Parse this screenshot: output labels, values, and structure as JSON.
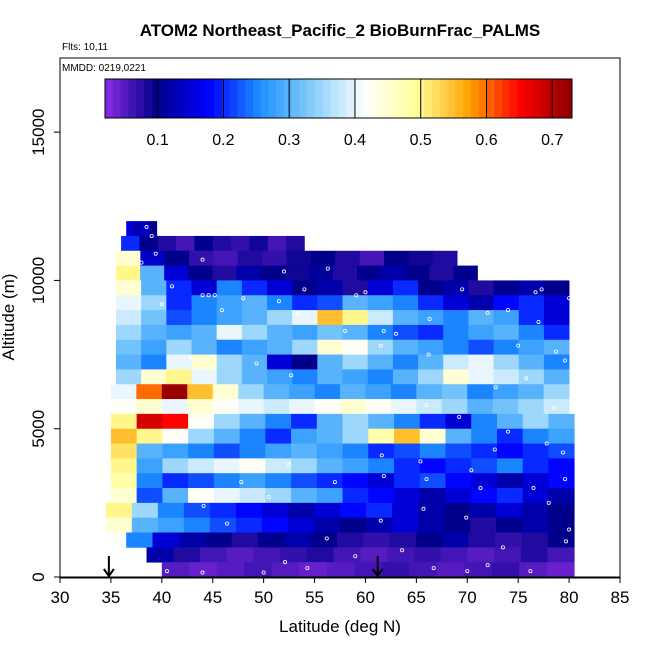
{
  "chart_data": {
    "type": "heatmap",
    "title": "ATOM2 Northeast_Pacific_2 BioBurnFrac_PALMS",
    "annotations": {
      "flights": "Flts: 10,11",
      "dates": "MMDD: 0219,0221"
    },
    "xlabel": "Latitude (deg N)",
    "ylabel": "Altitude (m)",
    "xlim": [
      30,
      85
    ],
    "ylim": [
      0,
      17500
    ],
    "x_ticks": [
      30,
      35,
      40,
      45,
      50,
      55,
      60,
      65,
      70,
      75,
      80,
      85
    ],
    "y_ticks": [
      0,
      5000,
      10000,
      15000
    ],
    "colorbar": {
      "range": [
        0.02,
        0.73
      ],
      "ticks": [
        0.1,
        0.2,
        0.3,
        0.4,
        0.5,
        0.6,
        0.7
      ],
      "colors": [
        "#8a2be2",
        "#00008b",
        "#0000ff",
        "#1e90ff",
        "#87cefa",
        "#ffffff",
        "#ffff99",
        "#ffa500",
        "#ff0000",
        "#8b0000"
      ]
    },
    "markers": [
      {
        "label": "down-arrow",
        "latitude": 34.8
      },
      {
        "label": "down-arrow",
        "latitude": 61.2
      }
    ],
    "altitude_bands": [
      {
        "alt": [
          11500,
          12000
        ],
        "lat": [
          36.5,
          39.5
        ],
        "values": [
          0.15,
          0.12,
          0.14,
          0.1
        ]
      },
      {
        "alt": [
          11000,
          11500
        ],
        "lat": [
          36,
          54
        ],
        "values": [
          0.2,
          0.1,
          0.08,
          0.06,
          0.1,
          0.08,
          0.07,
          0.09,
          0.06,
          0.08
        ]
      },
      {
        "alt": [
          10500,
          11000
        ],
        "lat": [
          35.5,
          69
        ],
        "values": [
          0.45,
          0.14,
          0.1,
          0.07,
          0.06,
          0.08,
          0.07,
          0.09,
          0.1,
          0.08,
          0.06,
          0.1,
          0.09,
          0.08
        ]
      },
      {
        "alt": [
          10000,
          10500
        ],
        "lat": [
          35.5,
          71
        ],
        "values": [
          0.5,
          0.3,
          0.15,
          0.1,
          0.08,
          0.12,
          0.1,
          0.09,
          0.11,
          0.08,
          0.1,
          0.12,
          0.1,
          0.08,
          0.1
        ]
      },
      {
        "alt": [
          9500,
          10000
        ],
        "lat": [
          35.5,
          80
        ],
        "values": [
          0.45,
          0.3,
          0.2,
          0.15,
          0.25,
          0.2,
          0.15,
          0.1,
          0.12,
          0.08,
          0.15,
          0.2,
          0.1,
          0.12,
          0.08,
          0.1,
          0.12,
          0.1
        ]
      },
      {
        "alt": [
          9000,
          9500
        ],
        "lat": [
          35.5,
          80
        ],
        "values": [
          0.4,
          0.35,
          0.2,
          0.25,
          0.28,
          0.3,
          0.25,
          0.2,
          0.22,
          0.3,
          0.28,
          0.25,
          0.2,
          0.15,
          0.12,
          0.18,
          0.2,
          0.15
        ]
      },
      {
        "alt": [
          8500,
          9000
        ],
        "lat": [
          35.5,
          80
        ],
        "values": [
          0.38,
          0.32,
          0.22,
          0.25,
          0.28,
          0.3,
          0.35,
          0.4,
          0.55,
          0.5,
          0.38,
          0.3,
          0.28,
          0.25,
          0.3,
          0.28,
          0.2,
          0.15
        ]
      },
      {
        "alt": [
          8000,
          8500
        ],
        "lat": [
          35.5,
          80
        ],
        "values": [
          0.35,
          0.3,
          0.28,
          0.3,
          0.4,
          0.35,
          0.3,
          0.28,
          0.32,
          0.3,
          0.25,
          0.22,
          0.2,
          0.25,
          0.28,
          0.3,
          0.25,
          0.2
        ]
      },
      {
        "alt": [
          7500,
          8000
        ],
        "lat": [
          35.5,
          80
        ],
        "values": [
          0.32,
          0.28,
          0.35,
          0.3,
          0.25,
          0.28,
          0.3,
          0.35,
          0.45,
          0.42,
          0.35,
          0.3,
          0.28,
          0.25,
          0.22,
          0.25,
          0.28,
          0.3
        ]
      },
      {
        "alt": [
          7000,
          7500
        ],
        "lat": [
          35.5,
          80
        ],
        "values": [
          0.3,
          0.25,
          0.4,
          0.45,
          0.35,
          0.3,
          0.15,
          0.1,
          0.3,
          0.35,
          0.3,
          0.25,
          0.3,
          0.38,
          0.4,
          0.35,
          0.3,
          0.25
        ]
      },
      {
        "alt": [
          6500,
          7000
        ],
        "lat": [
          35.5,
          80
        ],
        "values": [
          0.35,
          0.45,
          0.5,
          0.4,
          0.35,
          0.3,
          0.28,
          0.25,
          0.3,
          0.28,
          0.25,
          0.3,
          0.35,
          0.45,
          0.4,
          0.38,
          0.35,
          0.3
        ]
      },
      {
        "alt": [
          6000,
          6500
        ],
        "lat": [
          35,
          80
        ],
        "values": [
          0.4,
          0.6,
          0.72,
          0.55,
          0.45,
          0.35,
          0.3,
          0.28,
          0.25,
          0.3,
          0.28,
          0.25,
          0.3,
          0.32,
          0.25,
          0.28,
          0.3,
          0.35
        ]
      },
      {
        "alt": [
          5500,
          6000
        ],
        "lat": [
          35,
          80
        ],
        "values": [
          0.42,
          0.45,
          0.4,
          0.45,
          0.42,
          0.4,
          0.38,
          0.4,
          0.42,
          0.45,
          0.42,
          0.4,
          0.38,
          0.35,
          0.3,
          0.32,
          0.35,
          0.38
        ]
      },
      {
        "alt": [
          5000,
          5500
        ],
        "lat": [
          35,
          80.5
        ],
        "values": [
          0.5,
          0.68,
          0.65,
          0.42,
          0.35,
          0.3,
          0.25,
          0.2,
          0.3,
          0.35,
          0.3,
          0.25,
          0.2,
          0.15,
          0.25,
          0.3,
          0.35,
          0.3
        ]
      },
      {
        "alt": [
          4500,
          5000
        ],
        "lat": [
          35,
          80.5
        ],
        "values": [
          0.55,
          0.5,
          0.42,
          0.35,
          0.3,
          0.25,
          0.2,
          0.28,
          0.3,
          0.35,
          0.48,
          0.55,
          0.45,
          0.3,
          0.25,
          0.2,
          0.25,
          0.28
        ]
      },
      {
        "alt": [
          4000,
          4500
        ],
        "lat": [
          35,
          80.5
        ],
        "values": [
          0.52,
          0.3,
          0.28,
          0.25,
          0.22,
          0.25,
          0.28,
          0.3,
          0.28,
          0.25,
          0.2,
          0.22,
          0.25,
          0.22,
          0.2,
          0.18,
          0.2,
          0.22
        ]
      },
      {
        "alt": [
          3500,
          4000
        ],
        "lat": [
          35,
          80.5
        ],
        "values": [
          0.5,
          0.28,
          0.35,
          0.38,
          0.4,
          0.42,
          0.38,
          0.35,
          0.3,
          0.28,
          0.25,
          0.2,
          0.18,
          0.2,
          0.22,
          0.25,
          0.2,
          0.18
        ]
      },
      {
        "alt": [
          3000,
          3500
        ],
        "lat": [
          35,
          80.5
        ],
        "values": [
          0.48,
          0.25,
          0.2,
          0.22,
          0.25,
          0.28,
          0.25,
          0.22,
          0.2,
          0.18,
          0.15,
          0.2,
          0.22,
          0.18,
          0.15,
          0.12,
          0.15,
          0.18
        ]
      },
      {
        "alt": [
          2500,
          3000
        ],
        "lat": [
          35,
          80.5
        ],
        "values": [
          0.45,
          0.22,
          0.3,
          0.42,
          0.4,
          0.38,
          0.35,
          0.3,
          0.28,
          0.2,
          0.18,
          0.15,
          0.12,
          0.15,
          0.18,
          0.2,
          0.15,
          0.12
        ]
      },
      {
        "alt": [
          2000,
          2500
        ],
        "lat": [
          34.5,
          80.5
        ],
        "values": [
          0.5,
          0.35,
          0.25,
          0.22,
          0.2,
          0.18,
          0.15,
          0.12,
          0.15,
          0.18,
          0.2,
          0.15,
          0.12,
          0.1,
          0.12,
          0.15,
          0.12,
          0.1
        ]
      },
      {
        "alt": [
          1500,
          2000
        ],
        "lat": [
          34.5,
          80.5
        ],
        "values": [
          0.45,
          0.3,
          0.28,
          0.25,
          0.22,
          0.2,
          0.18,
          0.15,
          0.12,
          0.1,
          0.12,
          0.15,
          0.12,
          0.1,
          0.08,
          0.1,
          0.12,
          0.1
        ]
      },
      {
        "alt": [
          1000,
          1500
        ],
        "lat": [
          36.5,
          80.5
        ],
        "values": [
          0.25,
          0.15,
          0.12,
          0.1,
          0.08,
          0.1,
          0.12,
          0.1,
          0.08,
          0.07,
          0.08,
          0.1,
          0.12,
          0.08,
          0.07,
          0.08,
          0.1
        ]
      },
      {
        "alt": [
          500,
          1000
        ],
        "lat": [
          38.5,
          80.5
        ],
        "values": [
          0.12,
          0.08,
          0.06,
          0.05,
          0.06,
          0.07,
          0.08,
          0.06,
          0.05,
          0.06,
          0.07,
          0.06,
          0.05,
          0.06,
          0.08,
          0.06
        ]
      },
      {
        "alt": [
          0,
          500
        ],
        "lat": [
          40,
          80.5
        ],
        "values": [
          0.05,
          0.04,
          0.05,
          0.06,
          0.05,
          0.04,
          0.05,
          0.06,
          0.07,
          0.06,
          0.05,
          0.06,
          0.07,
          0.05,
          0.04
        ]
      }
    ],
    "sample_points": [
      [
        38.5,
        11800
      ],
      [
        39,
        11500
      ],
      [
        39.4,
        10900
      ],
      [
        38,
        10600
      ],
      [
        44,
        10700
      ],
      [
        52,
        10300
      ],
      [
        56.3,
        10400
      ],
      [
        71,
        10800
      ],
      [
        72.5,
        10500
      ],
      [
        41,
        9800
      ],
      [
        44,
        9500
      ],
      [
        44.6,
        9500
      ],
      [
        45.2,
        9500
      ],
      [
        48,
        9400
      ],
      [
        51.5,
        9300
      ],
      [
        54,
        9700
      ],
      [
        59.1,
        9500
      ],
      [
        60,
        9600
      ],
      [
        69.5,
        9700
      ],
      [
        76.7,
        9600
      ],
      [
        77.3,
        9700
      ],
      [
        80,
        9400
      ],
      [
        40,
        9200
      ],
      [
        45.9,
        9000
      ],
      [
        53.4,
        8900
      ],
      [
        66.3,
        8700
      ],
      [
        72,
        8900
      ],
      [
        58,
        8300
      ],
      [
        61.8,
        8300
      ],
      [
        63,
        8200
      ],
      [
        77,
        8600
      ],
      [
        42.8,
        7400
      ],
      [
        49.3,
        7200
      ],
      [
        52.7,
        6800
      ],
      [
        57.5,
        7900
      ],
      [
        61.5,
        7800
      ],
      [
        66.2,
        7500
      ],
      [
        68.8,
        6900
      ],
      [
        78.7,
        7600
      ],
      [
        79.6,
        7300
      ],
      [
        75.8,
        6700
      ],
      [
        36.8,
        6300
      ],
      [
        56.3,
        5900
      ],
      [
        72.8,
        6400
      ],
      [
        78.5,
        5700
      ],
      [
        69.2,
        5400
      ],
      [
        66,
        5800
      ],
      [
        74,
        4900
      ],
      [
        77.8,
        4500
      ],
      [
        79.4,
        4200
      ],
      [
        72.7,
        4300
      ],
      [
        61.6,
        4100
      ],
      [
        52.5,
        3800
      ],
      [
        65.4,
        3900
      ],
      [
        70.4,
        3600
      ],
      [
        61.8,
        3400
      ],
      [
        47.8,
        3200
      ],
      [
        57,
        3200
      ],
      [
        66,
        3300
      ],
      [
        71.3,
        3000
      ],
      [
        76.5,
        3000
      ],
      [
        79.6,
        3300
      ],
      [
        50.5,
        2700
      ],
      [
        44.1,
        2400
      ],
      [
        65.7,
        2300
      ],
      [
        78,
        2500
      ],
      [
        69.9,
        2000
      ],
      [
        61.5,
        1900
      ],
      [
        46.4,
        1800
      ],
      [
        80,
        1600
      ],
      [
        56.2,
        1300
      ],
      [
        73.5,
        1000
      ],
      [
        63.6,
        900
      ],
      [
        59,
        700
      ],
      [
        52.1,
        500
      ],
      [
        40.5,
        200
      ],
      [
        44,
        150
      ],
      [
        50,
        150
      ],
      [
        54.3,
        300
      ],
      [
        66.7,
        300
      ],
      [
        70,
        200
      ],
      [
        72,
        400
      ],
      [
        76.2,
        200
      ],
      [
        79.7,
        1200
      ],
      [
        74,
        9000
      ],
      [
        75,
        7800
      ]
    ]
  }
}
